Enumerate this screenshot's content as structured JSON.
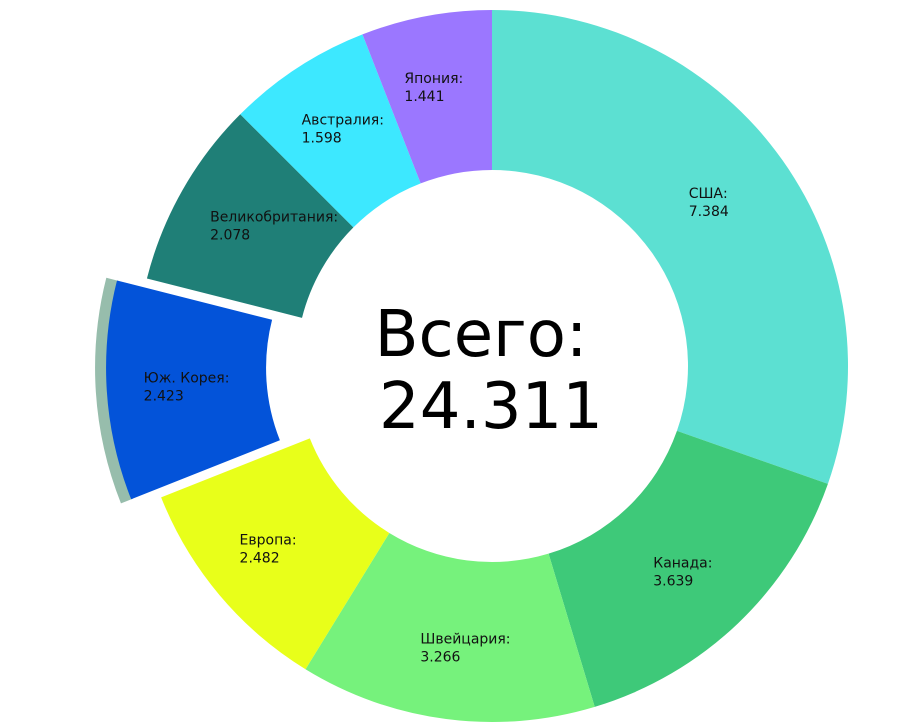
{
  "chart_data": {
    "type": "pie",
    "variant": "donut",
    "center_label_title": "Всего:",
    "center_label_value": "24.311",
    "slices": [
      {
        "name": "США",
        "label": "США:",
        "value": 7.384,
        "value_text": "7.384",
        "color": "#5ce0d2"
      },
      {
        "name": "Канада",
        "label": "Канада:",
        "value": 3.639,
        "value_text": "3.639",
        "color": "#3ec979"
      },
      {
        "name": "Швейцария",
        "label": "Швейцария:",
        "value": 3.266,
        "value_text": "3.266",
        "color": "#76f27c"
      },
      {
        "name": "Европа",
        "label": "Европа:",
        "value": 2.482,
        "value_text": "2.482",
        "color": "#e8ff1a"
      },
      {
        "name": "Юж. Корея",
        "label": "Юж. Корея:",
        "value": 2.423,
        "value_text": "2.423",
        "color": "#0353d9",
        "exploded": true
      },
      {
        "name": "Великобритания",
        "label": "Великобритания:",
        "value": 2.078,
        "value_text": "2.078",
        "color": "#1f7f77"
      },
      {
        "name": "Австралия",
        "label": "Австралия:",
        "value": 1.598,
        "value_text": "1.598",
        "color": "#3de8ff"
      },
      {
        "name": "Япония",
        "label": "Япония:",
        "value": 1.441,
        "value_text": "1.441",
        "color": "#9b77ff"
      }
    ],
    "start_angle": "top",
    "direction": "clockwise",
    "legend": "none",
    "highlight_shadow_color": "#97bdac"
  }
}
